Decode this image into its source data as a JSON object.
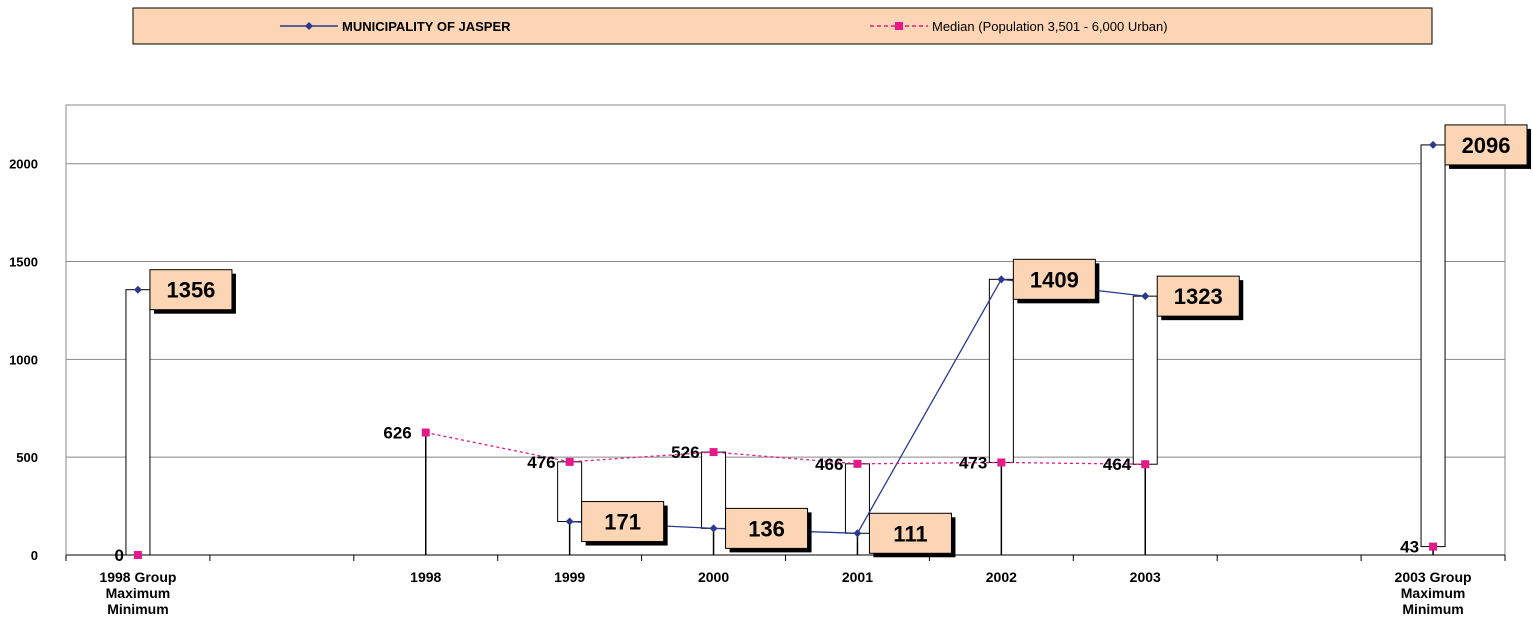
{
  "chart_data": {
    "type": "line",
    "categories": [
      "1998 Group\nMaximum\nMinimum",
      null,
      "1998",
      "1999",
      "2000",
      "2001",
      "2002",
      "2003",
      null,
      "2003 Group\nMaximum\nMinimum"
    ],
    "series": [
      {
        "name": "MUNICIPALITY OF JASPER",
        "color": "#2b3a8f",
        "values": [
          1356,
          null,
          null,
          171,
          136,
          111,
          1409,
          1323,
          null,
          2096
        ]
      },
      {
        "name": "Median (Population 3,501 - 6,000 Urban)",
        "color": "#e6198a",
        "values": [
          0,
          null,
          626,
          476,
          526,
          466,
          473,
          464,
          null,
          43
        ]
      }
    ],
    "ylim": [
      0,
      2300
    ],
    "yticks": [
      0,
      500,
      1000,
      1500,
      2000
    ],
    "grid": true
  }
}
